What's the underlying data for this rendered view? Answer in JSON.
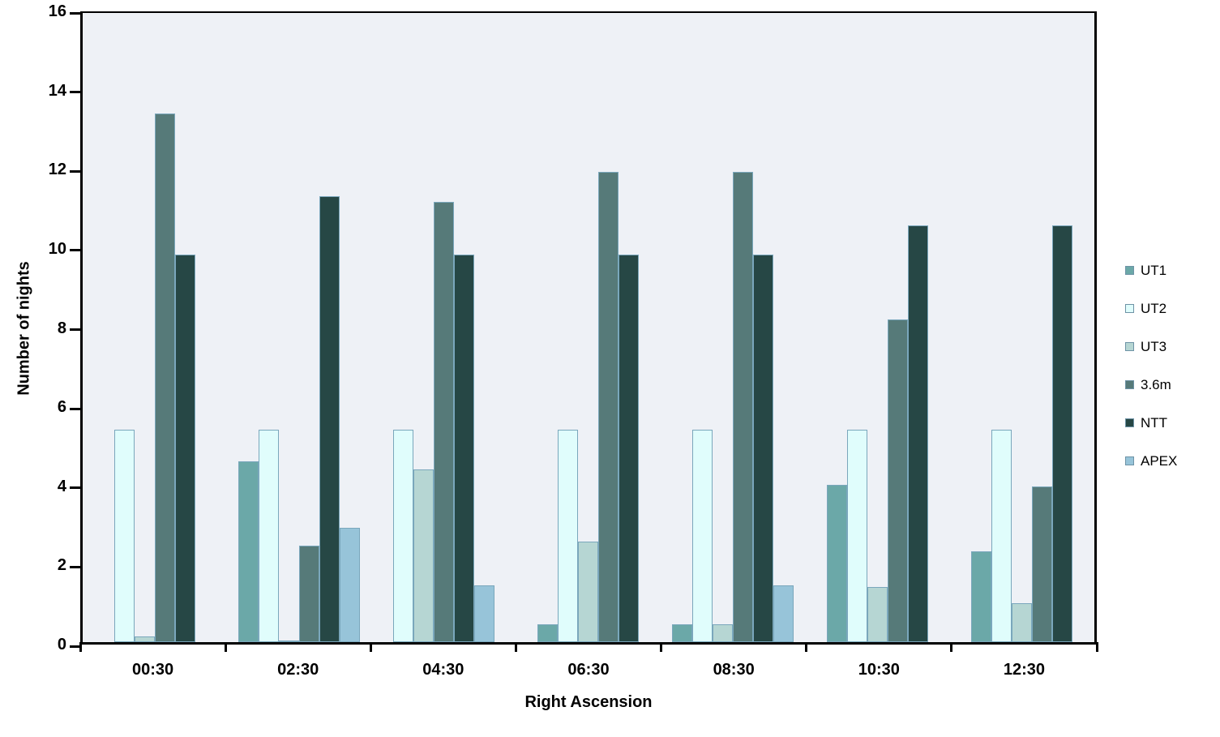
{
  "chart_data": {
    "type": "bar",
    "title": "",
    "xlabel": "Right Ascension",
    "ylabel": "Number of nights",
    "categories": [
      "00:30",
      "02:30",
      "04:30",
      "06:30",
      "08:30",
      "10:30",
      "12:30"
    ],
    "series": [
      {
        "name": "UT1",
        "color": "#6BA8A8",
        "values": [
          0,
          4.6,
          0,
          0.45,
          0.45,
          4.0,
          2.3
        ]
      },
      {
        "name": "UT2",
        "color": "#E0FDFC",
        "values": [
          5.4,
          5.4,
          5.4,
          5.4,
          5.4,
          5.4,
          5.4
        ]
      },
      {
        "name": "UT3",
        "color": "#B6D6D3",
        "values": [
          0.15,
          0.05,
          4.4,
          2.55,
          0.45,
          1.4,
          1.0
        ]
      },
      {
        "name": "3.6m",
        "color": "#567A79",
        "values": [
          13.45,
          2.45,
          11.2,
          11.95,
          11.95,
          8.2,
          3.95
        ]
      },
      {
        "name": "NTT",
        "color": "#264745",
        "values": [
          9.85,
          11.35,
          9.85,
          9.85,
          9.85,
          10.6,
          10.6
        ]
      },
      {
        "name": "APEX",
        "color": "#97C4D9",
        "values": [
          0,
          2.9,
          1.45,
          0,
          1.45,
          0,
          0
        ]
      }
    ],
    "ylim": [
      0,
      16
    ],
    "ytick_step": 2,
    "grid": false,
    "legend_position": "right",
    "plot_background": "#EEF1F6",
    "bar_border_color": "#7AA7BC",
    "axis_color": "#000000"
  }
}
